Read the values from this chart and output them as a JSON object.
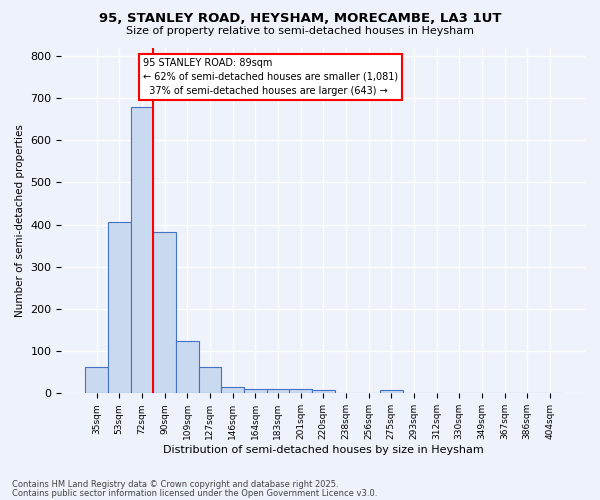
{
  "title1": "95, STANLEY ROAD, HEYSHAM, MORECAMBE, LA3 1UT",
  "title2": "Size of property relative to semi-detached houses in Heysham",
  "xlabel": "Distribution of semi-detached houses by size in Heysham",
  "ylabel": "Number of semi-detached properties",
  "bins": [
    "35sqm",
    "53sqm",
    "72sqm",
    "90sqm",
    "109sqm",
    "127sqm",
    "146sqm",
    "164sqm",
    "183sqm",
    "201sqm",
    "220sqm",
    "238sqm",
    "256sqm",
    "275sqm",
    "293sqm",
    "312sqm",
    "330sqm",
    "349sqm",
    "367sqm",
    "386sqm",
    "404sqm"
  ],
  "values": [
    62,
    407,
    680,
    383,
    125,
    63,
    15,
    11,
    11,
    10,
    8,
    0,
    0,
    8,
    0,
    0,
    0,
    0,
    0,
    0,
    0
  ],
  "bar_color": "#c9d9f0",
  "bar_edge_color": "#4472c4",
  "annotation_text": "95 STANLEY ROAD: 89sqm\n← 62% of semi-detached houses are smaller (1,081)\n  37% of semi-detached houses are larger (643) →",
  "ylim": [
    0,
    820
  ],
  "yticks": [
    0,
    100,
    200,
    300,
    400,
    500,
    600,
    700,
    800
  ],
  "footer1": "Contains HM Land Registry data © Crown copyright and database right 2025.",
  "footer2": "Contains public sector information licensed under the Open Government Licence v3.0.",
  "bg_color": "#eef2fb",
  "plot_bg": "#eef2fb",
  "grid_color": "#ffffff"
}
